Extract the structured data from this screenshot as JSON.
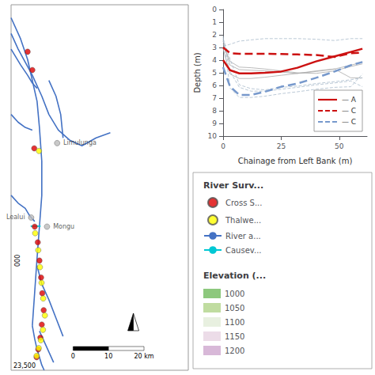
{
  "chart_data": [
    {
      "type": "map",
      "xlim": [
        23.0,
        23.75
      ],
      "ylim": [
        -15.85,
        -14.45
      ],
      "tick_labels": false,
      "grid": false,
      "legend": "right",
      "legend_titles": [
        "River Surv...",
        "Elevation (..."
      ],
      "annotations": [
        "0",
        "10",
        "20 km",
        "23,500",
        "000"
      ],
      "series": [
        {
          "name": "Cross S...",
          "type": "scatter",
          "color": "#dd0000",
          "x": [
            23.07,
            23.09,
            23.1,
            23.113,
            23.12,
            23.127,
            23.132,
            23.138,
            23.13,
            23.124,
            23.115,
            23.108,
            23.098
          ],
          "y": [
            -14.63,
            -14.7,
            -15.3,
            -15.36,
            -15.43,
            -15.495,
            -15.555,
            -15.62,
            -15.675,
            -15.725,
            -15.77,
            -15.8,
            -15.0
          ]
        },
        {
          "name": "Thalwe...",
          "type": "scatter",
          "color": "#ffff00",
          "x": [
            23.102,
            23.115,
            23.122,
            23.129,
            23.136,
            23.143,
            23.135,
            23.126,
            23.117,
            23.108,
            23.118
          ],
          "y": [
            -15.325,
            -15.39,
            -15.455,
            -15.515,
            -15.575,
            -15.64,
            -15.695,
            -15.735,
            -15.765,
            -15.795,
            -15.01
          ]
        },
        {
          "name": "River a...",
          "type": "line",
          "color": "#4472c4",
          "x": [
            23.0,
            23.04,
            23.07,
            23.09,
            23.11,
            23.12,
            23.13,
            23.13,
            23.12,
            23.11,
            23.1,
            23.09
          ],
          "y": [
            -14.5,
            -14.58,
            -14.66,
            -14.74,
            -14.82,
            -14.92,
            -15.05,
            -15.18,
            -15.3,
            -15.42,
            -15.55,
            -15.68
          ]
        },
        {
          "name": "River a...",
          "type": "line",
          "color": "#4472c4",
          "x": [
            23.0,
            23.03,
            23.06,
            23.09,
            23.13,
            23.16,
            23.2,
            23.25
          ],
          "y": [
            -14.56,
            -14.62,
            -14.67,
            -14.72,
            -14.8,
            -14.87,
            -14.93,
            -14.97
          ]
        },
        {
          "name": "River a...",
          "type": "line",
          "color": "#4472c4",
          "x": [
            23.25,
            23.3,
            23.36,
            23.42
          ],
          "y": [
            -14.97,
            -14.99,
            -14.96,
            -14.94
          ]
        },
        {
          "name": "River a...",
          "type": "line",
          "color": "#4472c4",
          "x": [
            23.09,
            23.1,
            23.11,
            23.12,
            23.13,
            23.14
          ],
          "y": [
            -15.68,
            -15.73,
            -15.77,
            -15.8,
            -15.83,
            -15.85
          ]
        },
        {
          "name": "River a...",
          "type": "line",
          "color": "#4472c4",
          "x": [
            23.11,
            23.13,
            23.16,
            23.19,
            23.22
          ],
          "y": [
            -15.45,
            -15.52,
            -15.58,
            -15.65,
            -15.72
          ]
        },
        {
          "name": "River a...",
          "type": "line",
          "color": "#4472c4",
          "x": [
            23.12,
            23.14,
            23.16,
            23.18
          ],
          "y": [
            -15.7,
            -15.74,
            -15.78,
            -15.82
          ]
        },
        {
          "name": "River a...",
          "type": "line",
          "color": "#4472c4",
          "x": [
            23.0,
            23.03,
            23.06,
            23.09
          ],
          "y": [
            -14.87,
            -14.9,
            -14.92,
            -14.93
          ]
        },
        {
          "name": "River a...",
          "type": "line",
          "color": "#4472c4",
          "x": [
            23.0,
            23.03,
            23.06,
            23.08,
            23.1
          ],
          "y": [
            -15.18,
            -15.21,
            -15.23,
            -15.26,
            -15.28
          ]
        },
        {
          "name": "River a...",
          "type": "line",
          "color": "#4472c4",
          "x": [
            23.16,
            23.19,
            23.21,
            23.22
          ],
          "y": [
            -14.74,
            -14.8,
            -14.87,
            -14.96
          ]
        },
        {
          "name": "River a...",
          "type": "line",
          "color": "#4472c4",
          "x": [
            23.0,
            23.04,
            23.07,
            23.09,
            23.11
          ],
          "y": [
            -14.62,
            -14.68,
            -14.72,
            -14.75,
            -14.77
          ]
        },
        {
          "name": "Causev...",
          "type": "line",
          "color": "#00c8d4",
          "x": [
            23.083,
            23.125
          ],
          "y": [
            -15.298,
            -15.298
          ]
        },
        {
          "type": "scatter",
          "color": "#bbbbbb",
          "x": [
            23.195,
            23.085,
            23.152
          ],
          "y": [
            -14.98,
            -15.265,
            -15.3
          ],
          "labels": [
            "Limulunga",
            "Lealui",
            "Mongu"
          ]
        },
        {
          "name": "1000",
          "type": "area",
          "color": "#8dc87d"
        },
        {
          "name": "1050",
          "type": "area",
          "color": "#c0dca0"
        },
        {
          "name": "1100",
          "type": "area",
          "color": "#e8f0e0"
        },
        {
          "name": "1150",
          "type": "area",
          "color": "#ecdce8"
        },
        {
          "name": "1200",
          "type": "area",
          "color": "#d8b8d8"
        }
      ]
    },
    {
      "type": "line",
      "xlabel": "Chainage from Left Bank (m)",
      "ylabel": "Depth (m)",
      "xlim": [
        0,
        62
      ],
      "ylim": [
        10,
        0
      ],
      "xticks": [
        0,
        25,
        50
      ],
      "yticks": [
        0,
        1,
        2,
        3,
        4,
        5,
        6,
        7,
        8,
        9,
        10
      ],
      "grid": false,
      "legend": "lower right",
      "x": [
        0,
        3,
        7,
        12,
        18,
        25,
        32,
        40,
        48,
        55,
        60
      ],
      "series": [
        {
          "color": "#aaaaaa",
          "line_style": "solid",
          "values": [
            2.5,
            4.4,
            4.75,
            4.8,
            4.85,
            4.95,
            5.05,
            4.9,
            4.7,
            4.4,
            4.15
          ]
        },
        {
          "color": "#aaaaaa",
          "line_style": "solid",
          "values": [
            3.1,
            5.1,
            5.45,
            5.45,
            5.35,
            5.2,
            5.05,
            4.85,
            4.7,
            5.4,
            5.4
          ]
        },
        {
          "color": "#aaaaaa",
          "line_style": "solid",
          "values": [
            2.7,
            4.1,
            4.55,
            4.6,
            4.7,
            4.85,
            5.0,
            5.05,
            4.85,
            4.5,
            4.3
          ]
        },
        {
          "color": "#aabbcc",
          "line_style": "dashed",
          "values": [
            2.3,
            3.9,
            5.95,
            6.25,
            6.35,
            6.15,
            6.05,
            5.85,
            5.7,
            5.55,
            5.4
          ]
        },
        {
          "color": "#aabbcc",
          "line_style": "dashed",
          "values": [
            2.1,
            6.2,
            6.95,
            6.95,
            6.85,
            6.65,
            6.5,
            6.3,
            6.15,
            6.1,
            5.1
          ]
        },
        {
          "color": "#aabbcc",
          "line_style": "dashed",
          "values": [
            2.4,
            4.9,
            6.15,
            6.45,
            6.45,
            6.3,
            6.15,
            5.95,
            5.8,
            5.65,
            6.1
          ]
        },
        {
          "color": "#aabbcc",
          "line_style": "dashed",
          "values": [
            2.9,
            2.75,
            2.5,
            2.4,
            2.3,
            2.3,
            2.3,
            2.35,
            2.45,
            2.3,
            2.3
          ]
        },
        {
          "name": "— A",
          "color": "#cc1111",
          "line_style": "solid",
          "values": [
            4.0,
            4.8,
            5.05,
            5.05,
            5.0,
            4.9,
            4.6,
            4.1,
            3.7,
            3.35,
            3.1
          ]
        },
        {
          "name": "— C",
          "color": "#cc1111",
          "line_style": "dashed",
          "values": [
            3.0,
            3.45,
            3.5,
            3.5,
            3.5,
            3.52,
            3.55,
            3.6,
            3.75,
            3.45,
            3.4
          ]
        },
        {
          "name": "— C",
          "color": "#7799cc",
          "line_style": "dashed",
          "values": [
            4.55,
            6.1,
            6.75,
            6.75,
            6.5,
            6.1,
            5.85,
            5.4,
            4.9,
            4.4,
            4.15
          ]
        }
      ]
    }
  ]
}
